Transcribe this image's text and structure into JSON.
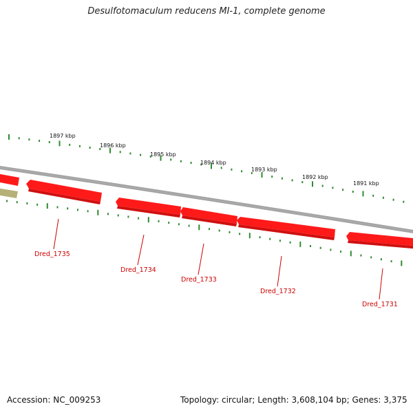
{
  "title": "Desulfotomaculum reducens MI-1, complete genome",
  "footer": {
    "accession": "Accession: NC_009253",
    "topology": "Topology: circular; Length: 3,608,104 bp; Genes: 3,375"
  },
  "colors": {
    "gene_fill": "#ff1a1a",
    "gene_shade": "#c00000",
    "gene_label": "#cc0000",
    "tick": "#2e8b2e",
    "backbone": "#888888",
    "other_feature": "#b5b178"
  },
  "kbp_labels": [
    "1897 kbp",
    "1896 kbp",
    "1895 kbp",
    "1894 kbp",
    "1893 kbp",
    "1892 kbp",
    "1891 kbp"
  ],
  "genes": [
    {
      "name": "Dred_1735"
    },
    {
      "name": "Dred_1734"
    },
    {
      "name": "Dred_1733"
    },
    {
      "name": "Dred_1732"
    },
    {
      "name": "Dred_1731"
    }
  ]
}
